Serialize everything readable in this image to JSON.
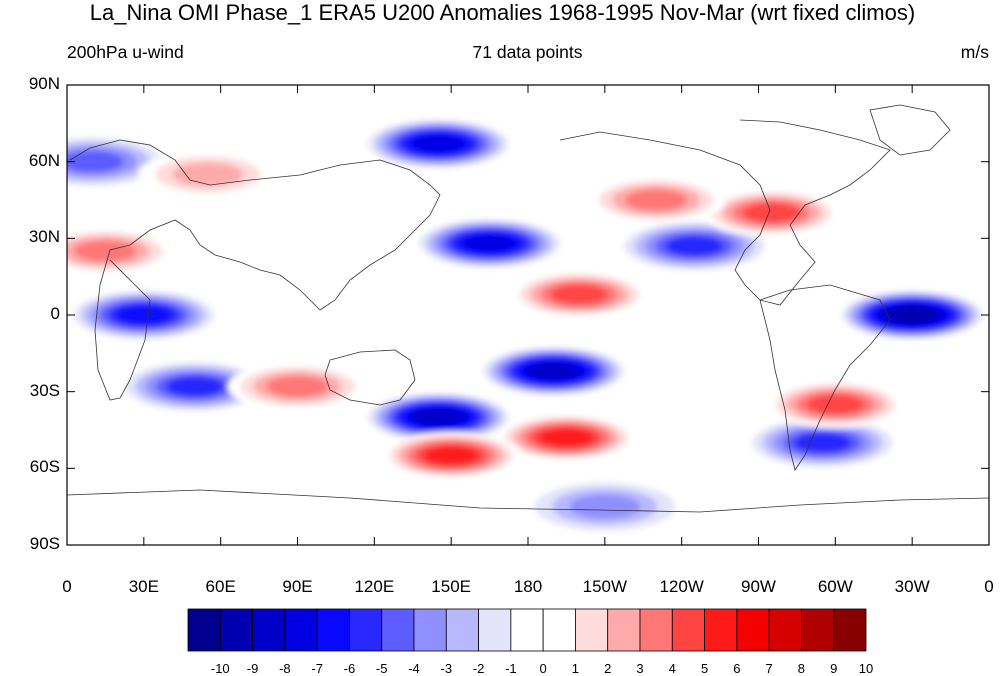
{
  "title": "La_Nina OMI Phase_1 ERA5 U200 Anomalies 1968-1995 Nov-Mar (wrt fixed climos)",
  "left_label": "200hPa u-wind",
  "center_label": "71 data points",
  "right_label": "m/s",
  "lat_labels": [
    "90N",
    "60N",
    "30N",
    "0",
    "30S",
    "60S",
    "90S"
  ],
  "lon_labels": [
    "0",
    "30E",
    "60E",
    "90E",
    "120E",
    "150E",
    "180",
    "150W",
    "120W",
    "90W",
    "60W",
    "30W",
    "0"
  ],
  "colorbar": {
    "labels": [
      "-10",
      "-9",
      "-8",
      "-7",
      "-6",
      "-5",
      "-4",
      "-3",
      "-2",
      "-1",
      "0",
      "1",
      "2",
      "3",
      "4",
      "5",
      "6",
      "7",
      "8",
      "9",
      "10"
    ],
    "colors": [
      "#00008e",
      "#0000b0",
      "#0000c9",
      "#0000e3",
      "#0808ff",
      "#2828ff",
      "#5c5cff",
      "#8f8fff",
      "#b8b8ff",
      "#e3e3fa",
      "#ffffff",
      "#ffffff",
      "#ffdcdc",
      "#ffaaaa",
      "#ff7777",
      "#ff4444",
      "#ff1a1a",
      "#f40000",
      "#d50000",
      "#b00000",
      "#880000"
    ]
  },
  "anomaly_features": [
    {
      "sign": "negative",
      "lon": 145,
      "lat": 67,
      "value": -7
    },
    {
      "sign": "negative",
      "lon": 10,
      "lat": 60,
      "value": -4
    },
    {
      "sign": "negative",
      "lon": 165,
      "lat": 28,
      "value": -7
    },
    {
      "sign": "negative",
      "lon": 245,
      "lat": 27,
      "value": -5
    },
    {
      "sign": "negative",
      "lon": 330,
      "lat": 0,
      "value": -9
    },
    {
      "sign": "negative",
      "lon": 30,
      "lat": 0,
      "value": -6
    },
    {
      "sign": "negative",
      "lon": 190,
      "lat": -22,
      "value": -8
    },
    {
      "sign": "negative",
      "lon": 145,
      "lat": -40,
      "value": -8
    },
    {
      "sign": "negative",
      "lon": 50,
      "lat": -28,
      "value": -5
    },
    {
      "sign": "negative",
      "lon": 295,
      "lat": -50,
      "value": -5
    },
    {
      "sign": "negative",
      "lon": 210,
      "lat": -75,
      "value": -3
    },
    {
      "sign": "positive",
      "lon": 275,
      "lat": 40,
      "value": 5
    },
    {
      "sign": "positive",
      "lon": 230,
      "lat": 45,
      "value": 4
    },
    {
      "sign": "positive",
      "lon": 200,
      "lat": 8,
      "value": 5
    },
    {
      "sign": "positive",
      "lon": 195,
      "lat": -48,
      "value": 6
    },
    {
      "sign": "positive",
      "lon": 150,
      "lat": -55,
      "value": 6
    },
    {
      "sign": "positive",
      "lon": 90,
      "lat": -28,
      "value": 4
    },
    {
      "sign": "positive",
      "lon": 300,
      "lat": -35,
      "value": 5
    },
    {
      "sign": "positive",
      "lon": 15,
      "lat": 25,
      "value": 4
    },
    {
      "sign": "positive",
      "lon": 55,
      "lat": 55,
      "value": 3
    }
  ]
}
